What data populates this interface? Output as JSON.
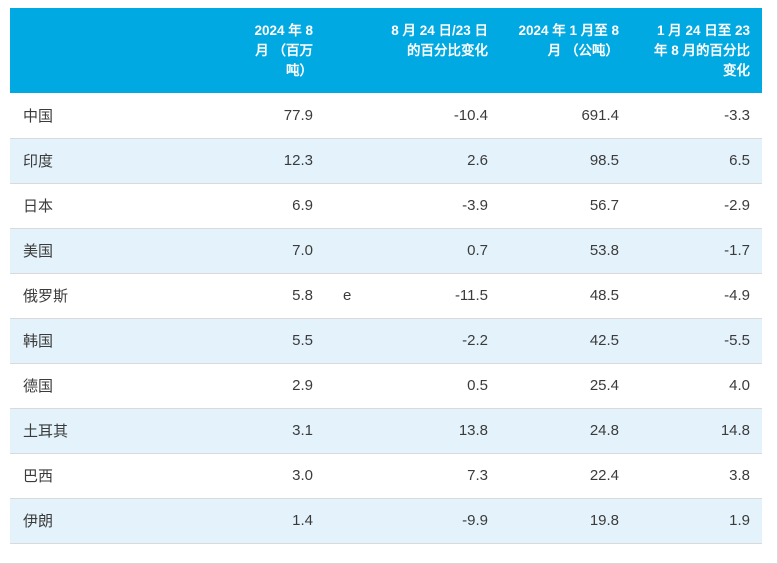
{
  "colors": {
    "header_bg": "#00a9e1",
    "header_text": "#ffffff",
    "row_bg": "#ffffff",
    "row_alt_bg": "#e4f3fb",
    "body_text": "#3b3b3b",
    "row_border": "#dadada"
  },
  "chart_data": {
    "type": "table",
    "columns": [
      "",
      "2024 年 8 月（百万吨）",
      "8 月 24 日/23 日的百分比变化",
      "2024 年 1 月至 8 月（公吨）",
      "1 月 24 日至 23 年 8 月的百分比变化"
    ],
    "headers_display": [
      "",
      "2024 年 8\n月 （百万\n吨）",
      "8 月 24 日/23 日\n的百分比变化",
      "2024 年 1 月至 8\n月 （公吨）",
      "1 月 24 日至 23\n年 8 月的百分比\n变化"
    ],
    "rows": [
      {
        "country": "中国",
        "aug_2024": "77.9",
        "footnote": "",
        "pct_change_mom": "-10.4",
        "jan_aug_2024": "691.4",
        "pct_change_ytd": "-3.3"
      },
      {
        "country": "印度",
        "aug_2024": "12.3",
        "footnote": "",
        "pct_change_mom": "2.6",
        "jan_aug_2024": "98.5",
        "pct_change_ytd": "6.5"
      },
      {
        "country": "日本",
        "aug_2024": "6.9",
        "footnote": "",
        "pct_change_mom": "-3.9",
        "jan_aug_2024": "56.7",
        "pct_change_ytd": "-2.9"
      },
      {
        "country": "美国",
        "aug_2024": "7.0",
        "footnote": "",
        "pct_change_mom": "0.7",
        "jan_aug_2024": "53.8",
        "pct_change_ytd": "-1.7"
      },
      {
        "country": "俄罗斯",
        "aug_2024": "5.8",
        "footnote": "e",
        "pct_change_mom": "-11.5",
        "jan_aug_2024": "48.5",
        "pct_change_ytd": "-4.9"
      },
      {
        "country": "韩国",
        "aug_2024": "5.5",
        "footnote": "",
        "pct_change_mom": "-2.2",
        "jan_aug_2024": "42.5",
        "pct_change_ytd": "-5.5"
      },
      {
        "country": "德国",
        "aug_2024": "2.9",
        "footnote": "",
        "pct_change_mom": "0.5",
        "jan_aug_2024": "25.4",
        "pct_change_ytd": "4.0"
      },
      {
        "country": "土耳其",
        "aug_2024": "3.1",
        "footnote": "",
        "pct_change_mom": "13.8",
        "jan_aug_2024": "24.8",
        "pct_change_ytd": "14.8"
      },
      {
        "country": "巴西",
        "aug_2024": "3.0",
        "footnote": "",
        "pct_change_mom": "7.3",
        "jan_aug_2024": "22.4",
        "pct_change_ytd": "3.8"
      },
      {
        "country": "伊朗",
        "aug_2024": "1.4",
        "footnote": "",
        "pct_change_mom": "-9.9",
        "jan_aug_2024": "19.8",
        "pct_change_ytd": "1.9"
      }
    ]
  }
}
